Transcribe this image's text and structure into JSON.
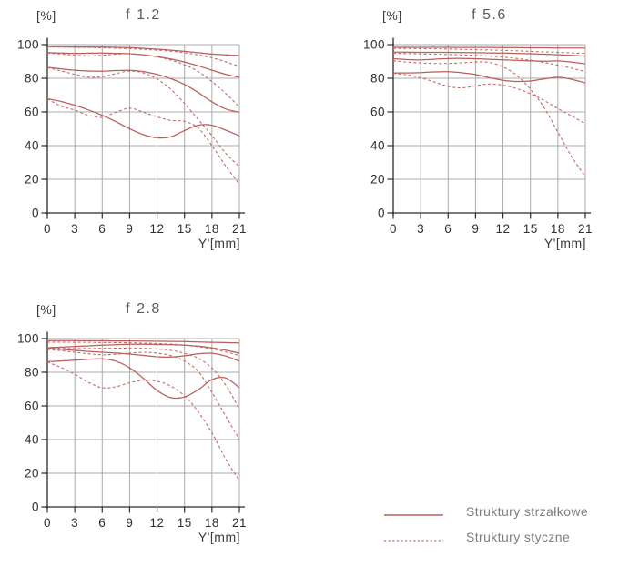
{
  "colors": {
    "sagittal_line": "#b95e5a",
    "tangential_line": "#c46a66",
    "grid": "#ababab",
    "axis": "#2a2a2a",
    "tick_label": "#2e2e2e",
    "title": "#5a5a5a",
    "legend_text": "#7d7d7d"
  },
  "legend": {
    "items": [
      {
        "label": "Struktury strzałkowe",
        "style": "solid"
      },
      {
        "label": "Struktury styczne",
        "style": "dashed"
      }
    ]
  },
  "chart_data": [
    {
      "type": "line",
      "title": "f 1.2",
      "ylabel": "[%]",
      "xlabel": "Y'[mm]",
      "xlim": [
        0,
        21
      ],
      "ylim": [
        0,
        100
      ],
      "x_ticks": [
        0,
        3,
        6,
        9,
        12,
        15,
        18,
        21
      ],
      "y_ticks": [
        0,
        20,
        40,
        60,
        80,
        100
      ],
      "grid": true,
      "x": [
        0,
        1.5,
        3,
        4.5,
        6,
        7.5,
        9,
        10.5,
        12,
        13.5,
        15,
        16.5,
        18,
        19.5,
        21
      ],
      "series": [
        {
          "name": "sagittal-1",
          "style": "solid",
          "values": [
            98.7,
            98.7,
            98.6,
            98.6,
            98.5,
            98.4,
            98.2,
            97.8,
            97.3,
            96.7,
            96.0,
            95.2,
            94.4,
            93.9,
            93.5
          ]
        },
        {
          "name": "tangential-1",
          "style": "dashed",
          "values": [
            98.6,
            98.5,
            98.4,
            98.3,
            98.1,
            97.9,
            97.6,
            97.2,
            96.7,
            96.1,
            95.2,
            93.9,
            92.2,
            89.8,
            87.0
          ]
        },
        {
          "name": "sagittal-2",
          "style": "solid",
          "values": [
            95.3,
            95.0,
            94.8,
            94.9,
            95.0,
            94.8,
            94.6,
            93.9,
            92.9,
            91.5,
            89.7,
            87.4,
            84.8,
            82.4,
            80.6
          ]
        },
        {
          "name": "tangential-2",
          "style": "dashed",
          "values": [
            95.0,
            94.4,
            93.7,
            93.3,
            93.6,
            94.3,
            94.6,
            94.0,
            92.7,
            90.8,
            88.0,
            84.0,
            78.0,
            71.0,
            63.0
          ]
        },
        {
          "name": "sagittal-3",
          "style": "solid",
          "values": [
            86.5,
            85.6,
            84.8,
            84.3,
            84.2,
            84.6,
            84.7,
            84.0,
            82.3,
            79.8,
            76.3,
            71.5,
            66.0,
            61.8,
            59.8
          ]
        },
        {
          "name": "tangential-3",
          "style": "dashed",
          "values": [
            86.3,
            84.4,
            82.3,
            80.7,
            80.9,
            82.8,
            84.3,
            83.2,
            79.5,
            73.5,
            65.0,
            55.5,
            46.0,
            35.5,
            27.5
          ]
        },
        {
          "name": "sagittal-4",
          "style": "solid",
          "values": [
            67.9,
            66.2,
            64.0,
            61.2,
            58.0,
            54.2,
            50.0,
            46.5,
            44.6,
            45.2,
            49.0,
            52.1,
            52.1,
            49.2,
            45.8
          ]
        },
        {
          "name": "tangential-4",
          "style": "dashed",
          "values": [
            67.7,
            63.5,
            61.1,
            58.0,
            56.8,
            59.8,
            62.2,
            59.8,
            57.1,
            55.0,
            54.4,
            50.5,
            40.0,
            27.9,
            17.1
          ]
        }
      ]
    },
    {
      "type": "line",
      "title": "f 5.6",
      "ylabel": "[%]",
      "xlabel": "Y'[mm]",
      "xlim": [
        0,
        21
      ],
      "ylim": [
        0,
        100
      ],
      "x_ticks": [
        0,
        3,
        6,
        9,
        12,
        15,
        18,
        21
      ],
      "y_ticks": [
        0,
        20,
        40,
        60,
        80,
        100
      ],
      "grid": true,
      "x": [
        0,
        1.5,
        3,
        4.5,
        6,
        7.5,
        9,
        10.5,
        12,
        13.5,
        15,
        16.5,
        18,
        19.5,
        21
      ],
      "series": [
        {
          "name": "sagittal-1",
          "style": "solid",
          "values": [
            98.4,
            98.4,
            98.4,
            98.4,
            98.4,
            98.3,
            98.3,
            98.3,
            98.2,
            98.2,
            98.1,
            98.1,
            98.0,
            98.0,
            98.0
          ]
        },
        {
          "name": "tangential-1",
          "style": "dashed",
          "values": [
            97.8,
            97.7,
            97.6,
            97.5,
            97.4,
            97.2,
            97.0,
            96.8,
            96.6,
            96.3,
            96.0,
            95.7,
            95.4,
            95.1,
            94.8
          ]
        },
        {
          "name": "sagittal-2",
          "style": "solid",
          "values": [
            95.5,
            95.5,
            95.4,
            95.4,
            95.4,
            95.3,
            95.2,
            95.1,
            95.0,
            94.8,
            94.6,
            94.3,
            94.0,
            93.6,
            93.2
          ]
        },
        {
          "name": "tangential-2",
          "style": "dashed",
          "values": [
            94.9,
            94.7,
            94.5,
            94.3,
            94.1,
            93.9,
            93.6,
            93.2,
            92.6,
            91.8,
            90.7,
            89.4,
            87.8,
            86.0,
            84.0
          ]
        },
        {
          "name": "sagittal-3",
          "style": "solid",
          "values": [
            91.6,
            91.1,
            90.9,
            91.3,
            91.7,
            91.8,
            91.6,
            91.3,
            91.0,
            90.7,
            90.3,
            90.1,
            90.3,
            89.6,
            88.6
          ]
        },
        {
          "name": "tangential-3",
          "style": "dashed",
          "values": [
            90.4,
            89.6,
            89.1,
            88.8,
            88.8,
            89.2,
            89.7,
            89.4,
            86.8,
            81.8,
            73.5,
            62.5,
            48.0,
            33.5,
            21.5
          ]
        },
        {
          "name": "sagittal-4",
          "style": "solid",
          "values": [
            83.2,
            83.2,
            83.4,
            83.8,
            83.9,
            83.3,
            82.2,
            80.4,
            78.8,
            78.1,
            78.4,
            79.6,
            80.6,
            79.4,
            77.2
          ]
        },
        {
          "name": "tangential-4",
          "style": "dashed",
          "values": [
            83.0,
            82.0,
            80.3,
            77.8,
            75.2,
            74.3,
            75.5,
            76.6,
            75.9,
            73.9,
            70.8,
            66.8,
            62.0,
            57.6,
            53.0
          ]
        }
      ]
    },
    {
      "type": "line",
      "title": "f 2.8",
      "ylabel": "[%]",
      "xlabel": "Y'[mm]",
      "xlim": [
        0,
        21
      ],
      "ylim": [
        0,
        100
      ],
      "x_ticks": [
        0,
        3,
        6,
        9,
        12,
        15,
        18,
        21
      ],
      "y_ticks": [
        0,
        20,
        40,
        60,
        80,
        100
      ],
      "grid": true,
      "x": [
        0,
        1.5,
        3,
        4.5,
        6,
        7.5,
        9,
        10.5,
        12,
        13.5,
        15,
        16.5,
        18,
        19.5,
        21
      ],
      "series": [
        {
          "name": "sagittal-1",
          "style": "solid",
          "values": [
            98.8,
            98.8,
            98.8,
            98.7,
            98.7,
            98.6,
            98.6,
            98.5,
            98.4,
            98.3,
            98.2,
            98.0,
            97.8,
            97.6,
            97.4
          ]
        },
        {
          "name": "tangential-1",
          "style": "dashed",
          "values": [
            97.9,
            97.9,
            97.8,
            97.8,
            97.7,
            97.6,
            97.5,
            97.3,
            97.1,
            96.7,
            96.1,
            95.2,
            93.9,
            92.1,
            90.0
          ]
        },
        {
          "name": "sagittal-2",
          "style": "solid",
          "values": [
            94.6,
            94.9,
            95.3,
            95.7,
            96.1,
            96.4,
            96.6,
            96.6,
            96.5,
            96.4,
            96.1,
            95.5,
            94.5,
            93.1,
            91.3
          ]
        },
        {
          "name": "tangential-2",
          "style": "dashed",
          "values": [
            94.3,
            94.2,
            94.1,
            94.1,
            94.2,
            94.3,
            94.3,
            94.2,
            93.8,
            93.0,
            91.3,
            88.3,
            82.5,
            72.5,
            58.0
          ]
        },
        {
          "name": "sagittal-3",
          "style": "solid",
          "values": [
            94.1,
            93.6,
            93.0,
            92.4,
            91.9,
            91.4,
            90.8,
            90.0,
            89.2,
            89.0,
            89.8,
            90.9,
            91.3,
            89.6,
            86.5
          ]
        },
        {
          "name": "tangential-3",
          "style": "dashed",
          "values": [
            93.5,
            92.8,
            91.9,
            91.0,
            90.4,
            90.7,
            91.4,
            91.9,
            91.4,
            89.9,
            86.6,
            80.5,
            68.0,
            54.0,
            40.0
          ]
        },
        {
          "name": "sagittal-4",
          "style": "solid",
          "values": [
            86.3,
            86.7,
            87.2,
            87.7,
            88.0,
            86.6,
            82.6,
            76.4,
            69.2,
            64.9,
            65.3,
            69.6,
            75.6,
            76.6,
            70.8
          ]
        },
        {
          "name": "tangential-4",
          "style": "dashed",
          "values": [
            86.1,
            82.8,
            78.8,
            74.0,
            70.8,
            71.4,
            73.8,
            75.3,
            74.7,
            71.8,
            66.0,
            56.5,
            44.0,
            28.5,
            15.5
          ]
        }
      ]
    }
  ]
}
